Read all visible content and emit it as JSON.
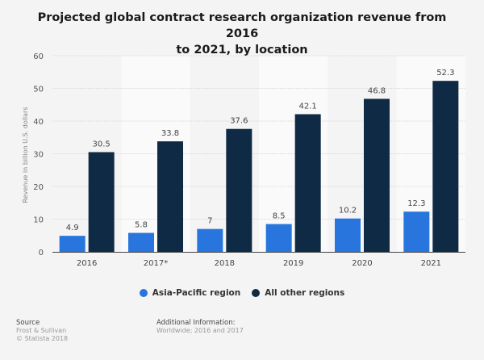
{
  "chart_data": {
    "type": "bar",
    "title": "Projected global contract research organization revenue from 2016 to 2021, by location",
    "xlabel": "",
    "ylabel": "Revenue in billion U.S. dollars",
    "ylim": [
      0,
      60
    ],
    "yticks": [
      0,
      10,
      20,
      30,
      40,
      50,
      60
    ],
    "grid": true,
    "categories": [
      "2016",
      "2017*",
      "2018",
      "2019",
      "2020",
      "2021"
    ],
    "series": [
      {
        "name": "Asia-Pacific region",
        "color": "#2876dd",
        "values": [
          4.9,
          5.8,
          7,
          8.5,
          10.2,
          12.3
        ],
        "labels": [
          "4.9",
          "5.8",
          "7",
          "8.5",
          "10.2",
          "12.3"
        ]
      },
      {
        "name": "All other regions",
        "color": "#0f2a44",
        "values": [
          30.5,
          33.8,
          37.6,
          42.1,
          46.8,
          52.3
        ],
        "labels": [
          "30.5",
          "33.8",
          "37.6",
          "42.1",
          "46.8",
          "52.3"
        ]
      }
    ],
    "legend_position": "bottom"
  },
  "title_line1": "Projected global contract research organization revenue from 2016",
  "title_line2": "to 2021, by location",
  "legend": [
    {
      "label": "Asia-Pacific region",
      "color": "#2876dd"
    },
    {
      "label": "All other regions",
      "color": "#0f2a44"
    }
  ],
  "footer": {
    "source_heading": "Source",
    "source_lines": [
      "Frost & Sullivan",
      "© Statista 2018"
    ],
    "info_heading": "Additional Information:",
    "info_text": "Worldwide; 2016 and 2017"
  }
}
